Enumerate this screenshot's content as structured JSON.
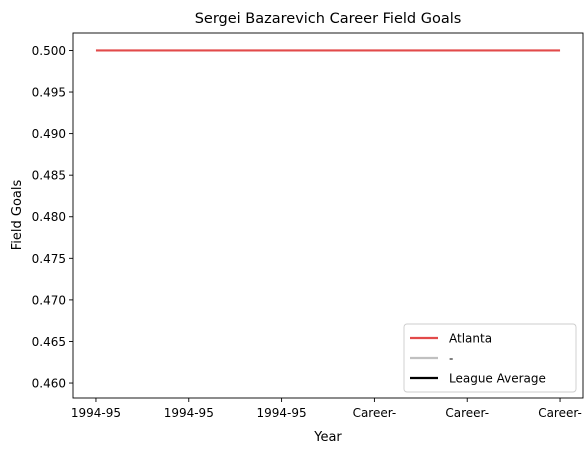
{
  "chart_data": {
    "type": "line",
    "title": "Sergei Bazarevich Career Field Goals",
    "xlabel": "Year",
    "ylabel": "Field Goals",
    "categories": [
      "1994-95",
      "1994-95",
      "1994-95",
      "Career-",
      "Career-",
      "Career-"
    ],
    "ylim": [
      0.4582,
      0.5021
    ],
    "yticks": [
      0.46,
      0.465,
      0.47,
      0.475,
      0.48,
      0.485,
      0.49,
      0.495,
      0.5
    ],
    "ytick_labels": [
      "0.460",
      "0.465",
      "0.470",
      "0.475",
      "0.480",
      "0.485",
      "0.490",
      "0.495",
      "0.500"
    ],
    "grid": false,
    "legend_position": "lower-right",
    "series": [
      {
        "name": "Atlanta",
        "color": "#e24a4a",
        "values": [
          0.5,
          0.5,
          0.5,
          0.5,
          0.5,
          0.5
        ]
      }
    ],
    "legend": [
      {
        "name": "Atlanta",
        "color": "#e24a4a"
      },
      {
        "name": "-",
        "color": "#c0c0c0"
      },
      {
        "name": "League Average",
        "color": "#000000"
      }
    ]
  }
}
